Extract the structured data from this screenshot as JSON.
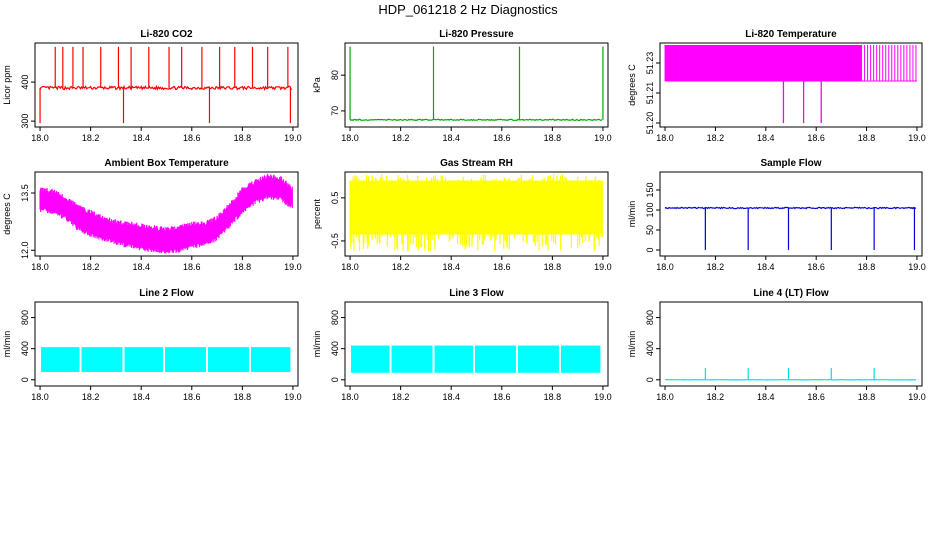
{
  "figure_title": "HDP_061218  2 Hz Diagnostics",
  "chart_data": [
    {
      "id": "co2",
      "type": "line",
      "title": "Li-820 CO2",
      "ylabel": "Licor ppm",
      "xlabel": "",
      "color": "#ff0000",
      "xlim": [
        17.98,
        19.02
      ],
      "ylim": [
        285,
        500
      ],
      "x_ticks": [
        "18.0",
        "18.2",
        "18.4",
        "18.6",
        "18.8",
        "19.0"
      ],
      "x_tick_values": [
        18.0,
        18.2,
        18.4,
        18.6,
        18.8,
        19.0
      ],
      "y_ticks": [
        "300",
        "400"
      ],
      "y_tick_values": [
        300,
        400
      ],
      "baseline": 385,
      "noise": 4,
      "spikes_up": [
        18.06,
        18.09,
        18.13,
        18.17,
        18.24,
        18.31,
        18.36,
        18.43,
        18.51,
        18.56,
        18.64,
        18.71,
        18.77,
        18.84,
        18.9,
        18.98
      ],
      "spike_up_value": 490,
      "spikes_down": [
        18.0,
        18.33,
        18.67,
        18.99
      ],
      "spike_down_value": 295
    },
    {
      "id": "pressure",
      "type": "line",
      "title": "Li-820 Pressure",
      "ylabel": "kPa",
      "xlabel": "",
      "color": "#00aa00",
      "xlim": [
        17.98,
        19.02
      ],
      "ylim": [
        65.5,
        89
      ],
      "x_ticks": [
        "18.0",
        "18.2",
        "18.4",
        "18.6",
        "18.8",
        "19.0"
      ],
      "x_tick_values": [
        18.0,
        18.2,
        18.4,
        18.6,
        18.8,
        19.0
      ],
      "y_ticks": [
        "70",
        "80"
      ],
      "y_tick_values": [
        70,
        80
      ],
      "baseline": 67.5,
      "noise": 0.15,
      "spikes_up": [
        18.0,
        18.33,
        18.67,
        19.0
      ],
      "spike_up_value": 88
    },
    {
      "id": "licor-temp",
      "type": "line",
      "title": "Li-820 Temperature",
      "ylabel": "degrees C",
      "xlabel": "",
      "color": "#ff00ff",
      "xlim": [
        17.98,
        19.02
      ],
      "ylim": [
        51.198,
        51.24
      ],
      "x_ticks": [
        "18.0",
        "18.2",
        "18.4",
        "18.6",
        "18.8",
        "19.0"
      ],
      "x_tick_values": [
        18.0,
        18.2,
        18.4,
        18.6,
        18.8,
        19.0
      ],
      "y_ticks": [
        "51.20",
        "51.21",
        "51.23"
      ],
      "y_tick_values": [
        51.2,
        51.215,
        51.23
      ],
      "band_low": 51.221,
      "band_high": 51.239,
      "dense_range": [
        18.0,
        18.78
      ],
      "sparse_range": [
        18.78,
        19.0
      ],
      "dips": [
        18.47,
        18.55,
        18.62
      ],
      "dip_value": 51.2
    },
    {
      "id": "box-temp",
      "type": "area",
      "title": "Ambient Box Temperature",
      "ylabel": "degrees C",
      "xlabel": "",
      "color": "#ff00ff",
      "xlim": [
        17.98,
        19.02
      ],
      "ylim": [
        11.85,
        14.05
      ],
      "x_ticks": [
        "18.0",
        "18.2",
        "18.4",
        "18.6",
        "18.8",
        "19.0"
      ],
      "x_tick_values": [
        18.0,
        18.2,
        18.4,
        18.6,
        18.8,
        19.0
      ],
      "y_ticks": [
        "12.0",
        "13.5"
      ],
      "y_tick_values": [
        12.0,
        13.5
      ],
      "x": [
        18.0,
        18.05,
        18.1,
        18.15,
        18.2,
        18.25,
        18.3,
        18.35,
        18.4,
        18.45,
        18.5,
        18.55,
        18.6,
        18.65,
        18.7,
        18.75,
        18.8,
        18.85,
        18.9,
        18.95,
        19.0
      ],
      "upper": [
        13.6,
        13.55,
        13.4,
        13.15,
        13.0,
        12.85,
        12.75,
        12.7,
        12.65,
        12.6,
        12.55,
        12.6,
        12.7,
        12.7,
        12.85,
        13.2,
        13.6,
        13.8,
        13.95,
        13.9,
        13.6
      ],
      "lower": [
        13.05,
        13.0,
        12.85,
        12.55,
        12.4,
        12.3,
        12.2,
        12.1,
        12.05,
        12.0,
        11.95,
        12.0,
        12.1,
        12.15,
        12.3,
        12.65,
        13.0,
        13.25,
        13.4,
        13.35,
        13.1
      ]
    },
    {
      "id": "rh",
      "type": "area",
      "title": "Gas Stream RH",
      "ylabel": "percent",
      "xlabel": "",
      "color": "#ffff00",
      "xlim": [
        17.98,
        19.02
      ],
      "ylim": [
        -0.85,
        1.1
      ],
      "x_ticks": [
        "18.0",
        "18.2",
        "18.4",
        "18.6",
        "18.8",
        "19.0"
      ],
      "x_tick_values": [
        18.0,
        18.2,
        18.4,
        18.6,
        18.8,
        19.0
      ],
      "y_ticks": [
        "-0.5",
        "0.5"
      ],
      "y_tick_values": [
        -0.5,
        0.5
      ],
      "band_low": -0.35,
      "band_high": 0.9,
      "spike_low": -0.75,
      "spike_high": 1.05
    },
    {
      "id": "sample-flow",
      "type": "line",
      "title": "Sample Flow",
      "ylabel": "ml/min",
      "xlabel": "",
      "color": "#0000dd",
      "xlim": [
        17.98,
        19.02
      ],
      "ylim": [
        -15,
        195
      ],
      "x_ticks": [
        "18.0",
        "18.2",
        "18.4",
        "18.6",
        "18.8",
        "19.0"
      ],
      "x_tick_values": [
        18.0,
        18.2,
        18.4,
        18.6,
        18.8,
        19.0
      ],
      "y_ticks": [
        "0",
        "50",
        "100",
        "150"
      ],
      "y_tick_values": [
        0,
        50,
        100,
        150
      ],
      "baseline": 105,
      "noise": 1.5,
      "spikes_down": [
        18.16,
        18.33,
        18.49,
        18.66,
        18.83,
        18.99
      ],
      "spike_down_value": 0
    },
    {
      "id": "line2-flow",
      "type": "area",
      "title": "Line 2 Flow",
      "ylabel": "ml/min",
      "xlabel": "",
      "color": "#00ffff",
      "xlim": [
        17.98,
        19.02
      ],
      "ylim": [
        -80,
        1000
      ],
      "x_ticks": [
        "18.0",
        "18.2",
        "18.4",
        "18.6",
        "18.8",
        "19.0"
      ],
      "x_tick_values": [
        18.0,
        18.2,
        18.4,
        18.6,
        18.8,
        19.0
      ],
      "y_ticks": [
        "0",
        "400",
        "800"
      ],
      "y_tick_values": [
        0,
        400,
        800
      ],
      "band_low": 100,
      "band_high": 420,
      "gaps": [
        18.16,
        18.33,
        18.49,
        18.66,
        18.83
      ],
      "end": 18.99
    },
    {
      "id": "line3-flow",
      "type": "area",
      "title": "Line 3 Flow",
      "ylabel": "ml/min",
      "xlabel": "",
      "color": "#00ffff",
      "xlim": [
        17.98,
        19.02
      ],
      "ylim": [
        -80,
        1000
      ],
      "x_ticks": [
        "18.0",
        "18.2",
        "18.4",
        "18.6",
        "18.8",
        "19.0"
      ],
      "x_tick_values": [
        18.0,
        18.2,
        18.4,
        18.6,
        18.8,
        19.0
      ],
      "y_ticks": [
        "0",
        "400",
        "800"
      ],
      "y_tick_values": [
        0,
        400,
        800
      ],
      "band_low": 90,
      "band_high": 440,
      "gaps": [
        18.16,
        18.33,
        18.49,
        18.66,
        18.83
      ],
      "end": 18.99
    },
    {
      "id": "line4-flow",
      "type": "line",
      "title": "Line 4 (LT) Flow",
      "ylabel": "ml/min",
      "xlabel": "",
      "color": "#00e0e0",
      "xlim": [
        17.98,
        19.02
      ],
      "ylim": [
        -80,
        1000
      ],
      "x_ticks": [
        "18.0",
        "18.2",
        "18.4",
        "18.6",
        "18.8",
        "19.0"
      ],
      "x_tick_values": [
        18.0,
        18.2,
        18.4,
        18.6,
        18.8,
        19.0
      ],
      "y_ticks": [
        "0",
        "400",
        "800"
      ],
      "y_tick_values": [
        0,
        400,
        800
      ],
      "baseline": 0,
      "noise": 2,
      "spikes_up": [
        18.16,
        18.33,
        18.49,
        18.66,
        18.83
      ],
      "spike_up_value": 150
    }
  ]
}
